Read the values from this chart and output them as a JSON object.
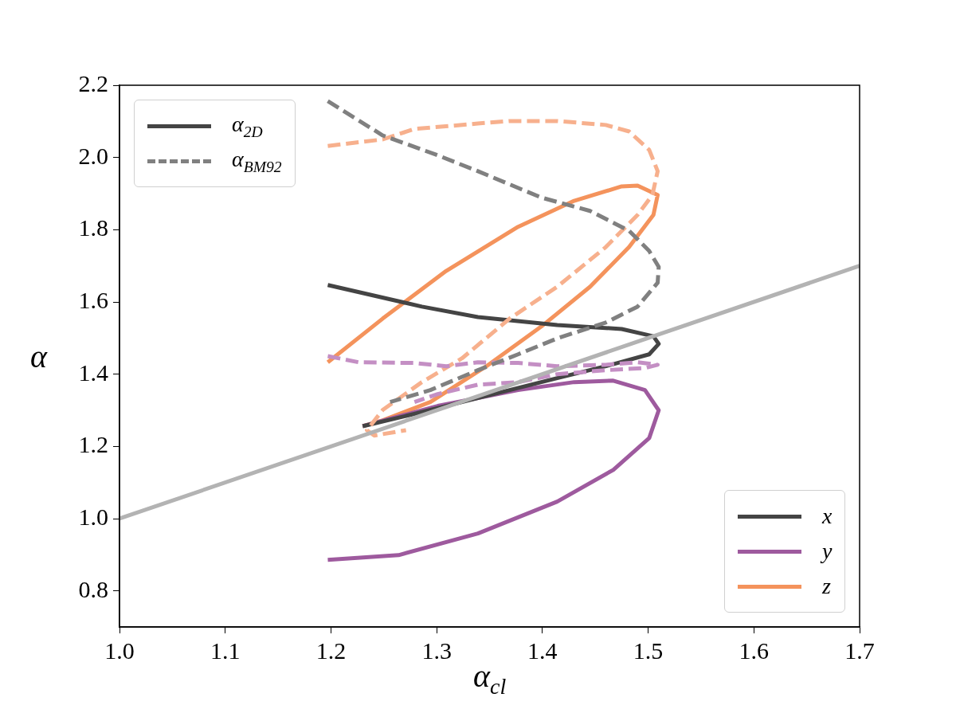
{
  "chart_data": {
    "type": "line",
    "xlabel": "α$_{cl}$",
    "ylabel": "α",
    "xlim": [
      1.0,
      1.7
    ],
    "xticks": [
      {
        "value": 1,
        "label": "1.0"
      },
      1.1,
      1.2,
      1.3,
      1.4,
      1.5,
      1.6,
      1.7
    ],
    "ylim": [
      0.7,
      2.2
    ],
    "yticks": [
      0.8,
      {
        "value": 1,
        "label": "1.0"
      },
      1.2,
      1.4,
      1.6,
      1.8,
      {
        "value": 2,
        "label": "2.0"
      },
      2.2
    ],
    "grid": false,
    "legend": "bottom right",
    "marker": "none",
    "series": [
      {
        "color": "#b3b3b3",
        "line_style": "solid",
        "x": [
          1.0,
          1.7
        ],
        "values": [
          1.0,
          1.7
        ]
      },
      {
        "color": "#808080",
        "line_style": "dashed",
        "x": [
          1.197,
          1.249,
          1.301,
          1.339,
          1.399,
          1.445,
          1.482,
          1.501,
          1.51,
          1.509,
          1.49,
          1.46,
          1.414,
          1.377,
          1.339,
          1.294,
          1.256
        ],
        "values": [
          2.156,
          2.061,
          2.006,
          1.962,
          1.889,
          1.852,
          1.797,
          1.741,
          1.697,
          1.653,
          1.587,
          1.543,
          1.499,
          1.455,
          1.411,
          1.356,
          1.323
        ]
      },
      {
        "color": "#c48fc4",
        "line_style": "dashed",
        "x": [
          1.197,
          1.226,
          1.279,
          1.309,
          1.339,
          1.377,
          1.414,
          1.46,
          1.49,
          1.509,
          1.497,
          1.46,
          1.414,
          1.377,
          1.339,
          1.301,
          1.279
        ],
        "values": [
          1.45,
          1.433,
          1.431,
          1.422,
          1.433,
          1.431,
          1.422,
          1.426,
          1.433,
          1.426,
          1.417,
          1.411,
          1.4,
          1.378,
          1.371,
          1.345,
          1.323
        ]
      },
      {
        "color": "#f7b08d",
        "line_style": "dashed",
        "x": [
          1.197,
          1.249,
          1.279,
          1.339,
          1.369,
          1.414,
          1.46,
          1.482,
          1.501,
          1.509,
          1.504,
          1.49,
          1.46,
          1.414,
          1.369,
          1.324,
          1.286,
          1.249,
          1.234,
          1.241,
          1.271
        ],
        "values": [
          2.032,
          2.05,
          2.079,
          2.094,
          2.101,
          2.101,
          2.09,
          2.072,
          2.021,
          1.962,
          1.896,
          1.841,
          1.752,
          1.642,
          1.554,
          1.444,
          1.378,
          1.301,
          1.245,
          1.23,
          1.245
        ]
      },
      {
        "name": "x",
        "color": "#444444",
        "line_style": "solid",
        "x": [
          1.197,
          1.286,
          1.339,
          1.414,
          1.475,
          1.505,
          1.51,
          1.501,
          1.46,
          1.414,
          1.339,
          1.279,
          1.23
        ],
        "values": [
          1.647,
          1.587,
          1.558,
          1.536,
          1.525,
          1.505,
          1.484,
          1.455,
          1.422,
          1.389,
          1.334,
          1.29,
          1.256
        ]
      },
      {
        "name": "y",
        "color": "#9e5a9e",
        "line_style": "solid",
        "x": [
          1.23,
          1.301,
          1.377,
          1.43,
          1.467,
          1.497,
          1.51,
          1.501,
          1.467,
          1.414,
          1.339,
          1.264,
          1.197
        ],
        "values": [
          1.256,
          1.312,
          1.356,
          1.378,
          1.382,
          1.356,
          1.3,
          1.223,
          1.135,
          1.047,
          0.959,
          0.899,
          0.886
        ]
      },
      {
        "name": "z",
        "color": "#f4935c",
        "line_style": "solid",
        "x": [
          1.197,
          1.249,
          1.309,
          1.377,
          1.43,
          1.475,
          1.49,
          1.509,
          1.505,
          1.482,
          1.445,
          1.399,
          1.347,
          1.294,
          1.249,
          1.23
        ],
        "values": [
          1.433,
          1.554,
          1.686,
          1.808,
          1.88,
          1.92,
          1.922,
          1.896,
          1.841,
          1.752,
          1.642,
          1.532,
          1.422,
          1.323,
          1.272,
          1.256
        ]
      },
      {
        "name": "α$_{2D}$",
        "color": "#444444",
        "line_style": "solid"
      },
      {
        "name": "α$_{BM92}$",
        "color": "#808080",
        "line_style": "dashed"
      }
    ]
  }
}
